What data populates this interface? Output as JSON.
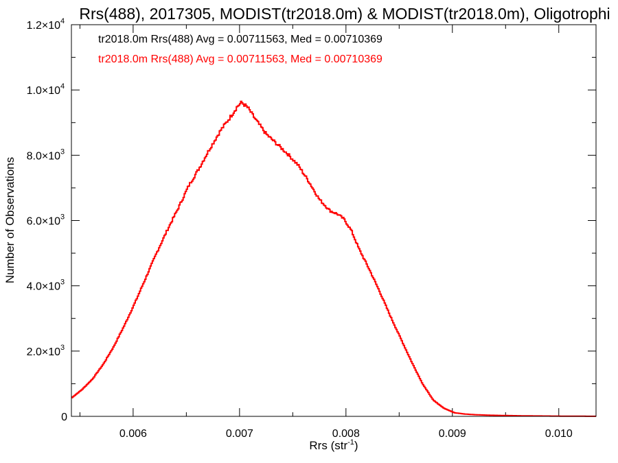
{
  "chart_data": {
    "type": "line",
    "title": "Rrs(488), 2017305, MODIST(tr2018.0m) & MODIST(tr2018.0m), Oligotrophi",
    "xlabel_main": "Rrs (str",
    "xlabel_sup": "-1",
    "xlabel_end": ")",
    "ylabel": "Number of Observations",
    "xlim": [
      0.00542,
      0.01035
    ],
    "ylim": [
      0,
      12000
    ],
    "x_ticks": [
      {
        "value": 0.006,
        "label": "0.006"
      },
      {
        "value": 0.007,
        "label": "0.007"
      },
      {
        "value": 0.008,
        "label": "0.008"
      },
      {
        "value": 0.009,
        "label": "0.009"
      },
      {
        "value": 0.01,
        "label": "0.010"
      }
    ],
    "y_ticks": [
      {
        "value": 0,
        "mant": "0",
        "exp": ""
      },
      {
        "value": 2000,
        "mant": "2.0×10",
        "exp": "3"
      },
      {
        "value": 4000,
        "mant": "4.0×10",
        "exp": "3"
      },
      {
        "value": 6000,
        "mant": "6.0×10",
        "exp": "3"
      },
      {
        "value": 8000,
        "mant": "8.0×10",
        "exp": "3"
      },
      {
        "value": 10000,
        "mant": "1.0×10",
        "exp": "4"
      },
      {
        "value": 12000,
        "mant": "1.2×10",
        "exp": "4"
      }
    ],
    "annotations": [
      {
        "text": "tr2018.0m Rrs(488) Avg = 0.00711563, Med = 0.00710369",
        "color": "#000000"
      },
      {
        "text": "tr2018.0m Rrs(488) Avg = 0.00711563, Med = 0.00710369",
        "color": "#ff0000"
      }
    ],
    "series": [
      {
        "color": "#ff0000",
        "points": [
          [
            0.00542,
            560
          ],
          [
            0.00552,
            820
          ],
          [
            0.00562,
            1150
          ],
          [
            0.00572,
            1600
          ],
          [
            0.00582,
            2150
          ],
          [
            0.00592,
            2800
          ],
          [
            0.00602,
            3500
          ],
          [
            0.00612,
            4250
          ],
          [
            0.00622,
            5000
          ],
          [
            0.00632,
            5700
          ],
          [
            0.00642,
            6350
          ],
          [
            0.00652,
            7050
          ],
          [
            0.00662,
            7600
          ],
          [
            0.00672,
            8200
          ],
          [
            0.00682,
            8750
          ],
          [
            0.00692,
            9200
          ],
          [
            0.00698,
            9500
          ],
          [
            0.00702,
            9620
          ],
          [
            0.00708,
            9450
          ],
          [
            0.00715,
            9100
          ],
          [
            0.00725,
            8650
          ],
          [
            0.00735,
            8350
          ],
          [
            0.00745,
            8050
          ],
          [
            0.00755,
            7700
          ],
          [
            0.00765,
            7200
          ],
          [
            0.00775,
            6650
          ],
          [
            0.00785,
            6300
          ],
          [
            0.00792,
            6200
          ],
          [
            0.00798,
            6050
          ],
          [
            0.00805,
            5700
          ],
          [
            0.00812,
            5150
          ],
          [
            0.00822,
            4500
          ],
          [
            0.00832,
            3800
          ],
          [
            0.00842,
            3050
          ],
          [
            0.00852,
            2350
          ],
          [
            0.00862,
            1650
          ],
          [
            0.00872,
            1000
          ],
          [
            0.00882,
            500
          ],
          [
            0.00892,
            250
          ],
          [
            0.00902,
            110
          ],
          [
            0.00912,
            70
          ],
          [
            0.00922,
            50
          ],
          [
            0.00935,
            35
          ],
          [
            0.0095,
            25
          ],
          [
            0.0097,
            15
          ],
          [
            0.0099,
            10
          ],
          [
            0.0101,
            5
          ],
          [
            0.01035,
            2
          ]
        ]
      }
    ]
  }
}
